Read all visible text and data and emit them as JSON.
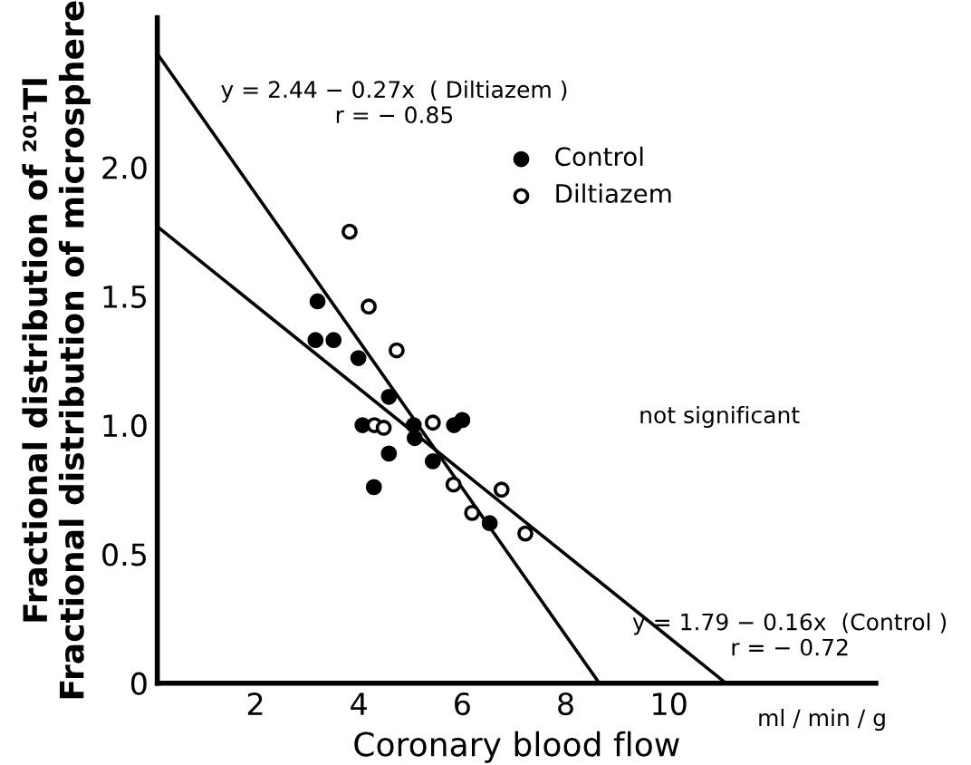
{
  "chart_data": {
    "type": "scatter",
    "xlabel": "Coronary blood flow",
    "ylabel": "Fractional distribution of ²⁰¹Tl\nFractional distribution of microsphere",
    "xlim": [
      0.1,
      14
    ],
    "ylim": [
      0,
      2.58
    ],
    "xticks": [
      2,
      4,
      6,
      8,
      10
    ],
    "yticks": [
      0,
      {
        "value": 0.5,
        "label": "0.5"
      },
      {
        "value": 1.0,
        "label": "1.0"
      },
      {
        "value": 1.5,
        "label": "1.5"
      },
      {
        "value": 2.0,
        "label": "2.0"
      }
    ],
    "grid": false,
    "legend": "top",
    "series": [
      {
        "name": "Control",
        "color": "#000000",
        "marker": "circle",
        "x": [
          3.2,
          3.16,
          3.51,
          3.99,
          4.58,
          4.07,
          5.06,
          5.08,
          4.58,
          5.43,
          4.29,
          5.84,
          6.0,
          6.53
        ],
        "values": [
          1.48,
          1.33,
          1.33,
          1.26,
          1.11,
          1.0,
          1.0,
          0.95,
          0.89,
          0.86,
          0.76,
          1.0,
          1.02,
          0.62
        ]
      },
      {
        "name": "Diltiazem",
        "color": "#ffffff",
        "marker": "circle",
        "x": [
          3.82,
          4.19,
          4.73,
          4.3,
          4.48,
          5.43,
          5.83,
          6.76,
          6.19,
          7.22
        ],
        "values": [
          1.75,
          1.46,
          1.29,
          1.0,
          0.99,
          1.01,
          0.77,
          0.75,
          0.66,
          0.58
        ]
      },
      {
        "type": "line",
        "color": "#000000",
        "x": [
          0.1,
          8.65
        ],
        "values": [
          2.44,
          0
        ]
      },
      {
        "type": "line",
        "color": "#000000",
        "x": [
          0.1,
          11.1
        ],
        "values": [
          1.77,
          0
        ]
      }
    ],
    "annotations": [
      "y = 2.44 − 0.27x  ( Diltiazem )\nr = − 0.85",
      "not significant",
      "y = 1.79 − 0.16x  (Control )\nr = − 0.72",
      "ml / min / g"
    ]
  }
}
